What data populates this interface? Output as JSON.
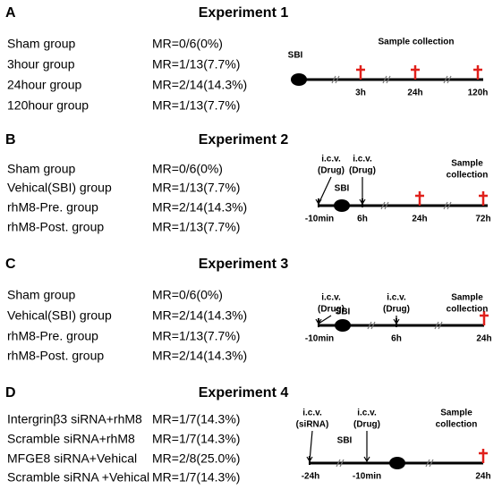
{
  "panels": [
    {
      "label": "A",
      "title": "Experiment 1",
      "groups": [
        {
          "name": "Sham group",
          "mr": "MR=0/6(0%)"
        },
        {
          "name": "3hour group",
          "mr": "MR=1/13(7.7%)"
        },
        {
          "name": "24hour group",
          "mr": "MR=2/14(14.3%)"
        },
        {
          "name": "120hour group",
          "mr": "MR=1/13(7.7%)"
        }
      ],
      "timeline": {
        "annotations": [
          [
            "SBI"
          ],
          [
            "Sample collection"
          ]
        ],
        "time_labels": [
          "3h",
          "24h",
          "120h"
        ]
      }
    },
    {
      "label": "B",
      "title": "Experiment 2",
      "groups": [
        {
          "name": "Sham group",
          "mr": "MR=0/6(0%)"
        },
        {
          "name": "Vehical(SBI) group",
          "mr": "MR=1/13(7.7%)"
        },
        {
          "name": "rhM8-Pre. group",
          "mr": "MR=2/14(14.3%)"
        },
        {
          "name": "rhM8-Post. group",
          "mr": "MR=1/13(7.7%)"
        }
      ],
      "timeline": {
        "annotations": [
          [
            "i.c.v.",
            "(Drug)"
          ],
          [
            "SBI"
          ],
          [
            "i.c.v.",
            "(Drug)"
          ],
          [
            "Sample",
            "collection"
          ]
        ],
        "time_labels": [
          "-10min",
          "6h",
          "24h",
          "72h"
        ]
      }
    },
    {
      "label": "C",
      "title": "Experiment 3",
      "groups": [
        {
          "name": "Sham group",
          "mr": "MR=0/6(0%)"
        },
        {
          "name": "Vehical(SBI) group",
          "mr": "MR=2/14(14.3%)"
        },
        {
          "name": "rhM8-Pre. group",
          "mr": "MR=1/13(7.7%)"
        },
        {
          "name": "rhM8-Post. group",
          "mr": "MR=2/14(14.3%)"
        }
      ],
      "timeline": {
        "annotations": [
          [
            "i.c.v.",
            "(Drug)"
          ],
          [
            "SBI"
          ],
          [
            "i.c.v.",
            "(Drug)"
          ],
          [
            "Sample",
            "collection"
          ]
        ],
        "time_labels": [
          "-10min",
          "6h",
          "24h"
        ]
      }
    },
    {
      "label": "D",
      "title": "Experiment 4",
      "groups": [
        {
          "name": "Intergrinβ3 siRNA+rhM8",
          "mr": "MR=1/7(14.3%)"
        },
        {
          "name": "Scramble siRNA+rhM8",
          "mr": "MR=1/7(14.3%)"
        },
        {
          "name": "MFGE8 siRNA+Vehical",
          "mr": "MR=2/8(25.0%)"
        },
        {
          "name": "Scramble siRNA +Vehical",
          "mr": "MR=1/7(14.3%)"
        }
      ],
      "timeline": {
        "annotations": [
          [
            "i.c.v.",
            "(siRNA)"
          ],
          [
            "SBI"
          ],
          [
            "i.c.v.",
            "(Drug)"
          ],
          [
            "Sample",
            "collection"
          ]
        ],
        "time_labels": [
          "-24h",
          "-10min",
          "24h"
        ]
      }
    }
  ]
}
